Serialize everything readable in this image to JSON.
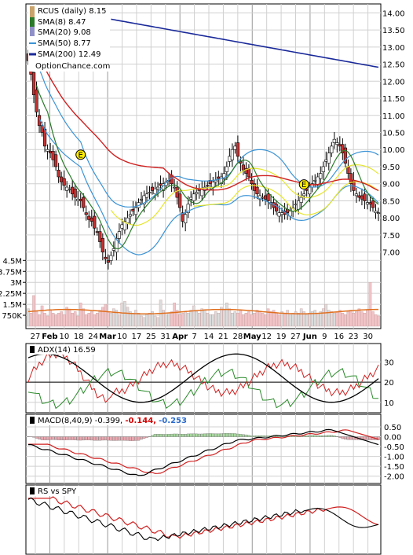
{
  "chart_data": [
    {
      "type": "candlestick",
      "ticker_label": "RCUS (daily) 8.15",
      "legend": [
        {
          "label": "SMA(8) 8.47",
          "color": "#2a7a2a"
        },
        {
          "label": "SMA(20) 9.08",
          "color": "#e6e630"
        },
        {
          "label": "SMA(50) 8.77",
          "color": "#3b93d6"
        },
        {
          "label": "SMA(200) 12.49",
          "color": "#1a2a9a"
        }
      ],
      "watermark": "OptionChance.com",
      "y_ticks": [
        "14.00",
        "13.50",
        "13.00",
        "12.50",
        "12.00",
        "11.50",
        "11.00",
        "10.50",
        "10.00",
        "9.50",
        "9.00",
        "8.50",
        "8.00",
        "7.50",
        "7.00"
      ],
      "ylim": [
        6.5,
        14.2
      ],
      "x_labels": [
        "27",
        "Feb",
        "10",
        "18",
        "24",
        "Mar",
        "10",
        "17",
        "25",
        "31",
        "Apr",
        "7",
        "14",
        "21",
        "28",
        "May",
        "12",
        "19",
        "27",
        "Jun",
        "9",
        "16",
        "23",
        "30"
      ],
      "x_bold": [
        "Feb",
        "Mar",
        "Apr",
        "May",
        "Jun"
      ],
      "earnings_markers": [
        {
          "label": "E",
          "price": 9.85,
          "n": 19
        },
        {
          "label": "E",
          "price": 8.98,
          "n": 100
        }
      ],
      "closes": [
        12.6,
        12.2,
        11.6,
        11.1,
        10.7,
        10.5,
        10.1,
        10.0,
        9.9,
        9.7,
        9.5,
        9.2,
        9.05,
        8.95,
        8.9,
        8.85,
        8.7,
        8.6,
        8.55,
        8.5,
        8.3,
        8.1,
        7.95,
        7.9,
        7.7,
        7.6,
        7.3,
        7.0,
        6.8,
        6.7,
        6.9,
        7.1,
        7.4,
        7.6,
        7.8,
        7.9,
        8.0,
        8.1,
        8.2,
        8.3,
        8.45,
        8.55,
        8.65,
        8.7,
        8.75,
        8.8,
        8.85,
        8.9,
        8.95,
        9.0,
        9.05,
        9.1,
        9.0,
        8.9,
        8.6,
        8.3,
        7.9,
        8.1,
        8.4,
        8.6,
        8.7,
        8.75,
        8.8,
        8.85,
        8.9,
        8.95,
        9.0,
        9.05,
        9.1,
        9.15,
        9.2,
        9.3,
        9.5,
        9.8,
        10.0,
        10.1,
        9.8,
        9.6,
        9.4,
        9.3,
        9.2,
        9.0,
        8.8,
        8.7,
        8.65,
        8.6,
        8.55,
        8.5,
        8.45,
        8.3,
        8.2,
        8.15,
        8.15,
        8.1,
        8.15,
        8.2,
        8.3,
        8.4,
        8.5,
        8.6,
        8.7,
        8.8,
        8.9,
        9.0,
        9.1,
        9.2,
        9.3,
        9.5,
        9.7,
        9.9,
        10.1,
        10.3,
        10.2,
        10.1,
        9.9,
        9.6,
        9.3,
        9.0,
        8.8,
        8.7,
        8.6,
        8.55,
        8.5,
        8.45,
        8.4,
        8.3,
        8.2,
        8.15
      ]
    },
    {
      "type": "bar",
      "name": "volume",
      "y_ticks": [
        "4.5M",
        "3.75M",
        "3M",
        "2.25M",
        "1.5M",
        "750K"
      ],
      "ylim": [
        0,
        5.0
      ],
      "values_millions": [
        1.2,
        0.9,
        2.1,
        1.0,
        0.8,
        1.4,
        0.9,
        0.7,
        1.1,
        0.9,
        0.8,
        0.9,
        1.0,
        0.8,
        1.3,
        1.1,
        0.9,
        1.0,
        0.7,
        1.6,
        1.2,
        0.8,
        0.9,
        1.0,
        0.8,
        0.9,
        1.1,
        1.3,
        1.5,
        1.0,
        0.9,
        1.2,
        1.1,
        0.8,
        1.6,
        1.7,
        1.3,
        1.0,
        0.9,
        1.1,
        0.9,
        0.7,
        0.6,
        0.8,
        0.9,
        1.0,
        0.7,
        0.6,
        1.8,
        1.1,
        0.8,
        0.9,
        1.0,
        1.6,
        1.1,
        0.8,
        0.9,
        1.0,
        0.9,
        1.1,
        1.4,
        1.0,
        0.9,
        1.2,
        1.1,
        0.9,
        0.8,
        0.8,
        1.0,
        0.9,
        1.3,
        1.1,
        1.6,
        1.2,
        0.9,
        1.0,
        0.9,
        1.1,
        0.8,
        0.9,
        1.0,
        0.8,
        0.9,
        1.1,
        1.0,
        0.9,
        0.8,
        1.2,
        1.0,
        1.1,
        0.9,
        0.8,
        1.0,
        0.9,
        1.1,
        0.8,
        0.9,
        1.0,
        0.9,
        1.2,
        1.0,
        0.8,
        0.9,
        1.0,
        1.1,
        0.9,
        1.0,
        1.2,
        1.5,
        1.1,
        1.0,
        0.9,
        1.0,
        1.1,
        0.9,
        0.8,
        1.0,
        1.1,
        0.9,
        1.0,
        1.2,
        1.0,
        0.9,
        1.1,
        3.0,
        1.0,
        0.8,
        0.7
      ],
      "avg_line": 1.0
    },
    {
      "type": "line",
      "name": "ADX",
      "label": "ADX(14) 16.59",
      "y_ticks": [
        "30",
        "20",
        "10"
      ],
      "ylim": [
        6,
        38
      ],
      "ref_line": 20
    },
    {
      "type": "line",
      "name": "MACD",
      "label": "MACD(8,40,9) -0.399,",
      "label2": "-0.144,",
      "label3": "-0.253",
      "y_ticks": [
        "0.50",
        "0.00",
        "-0.50",
        "-1.00",
        "-1.50",
        "-2.00"
      ],
      "ylim": [
        -2.25,
        0.7
      ]
    },
    {
      "type": "line",
      "name": "RS",
      "label": "RS vs SPY"
    }
  ]
}
